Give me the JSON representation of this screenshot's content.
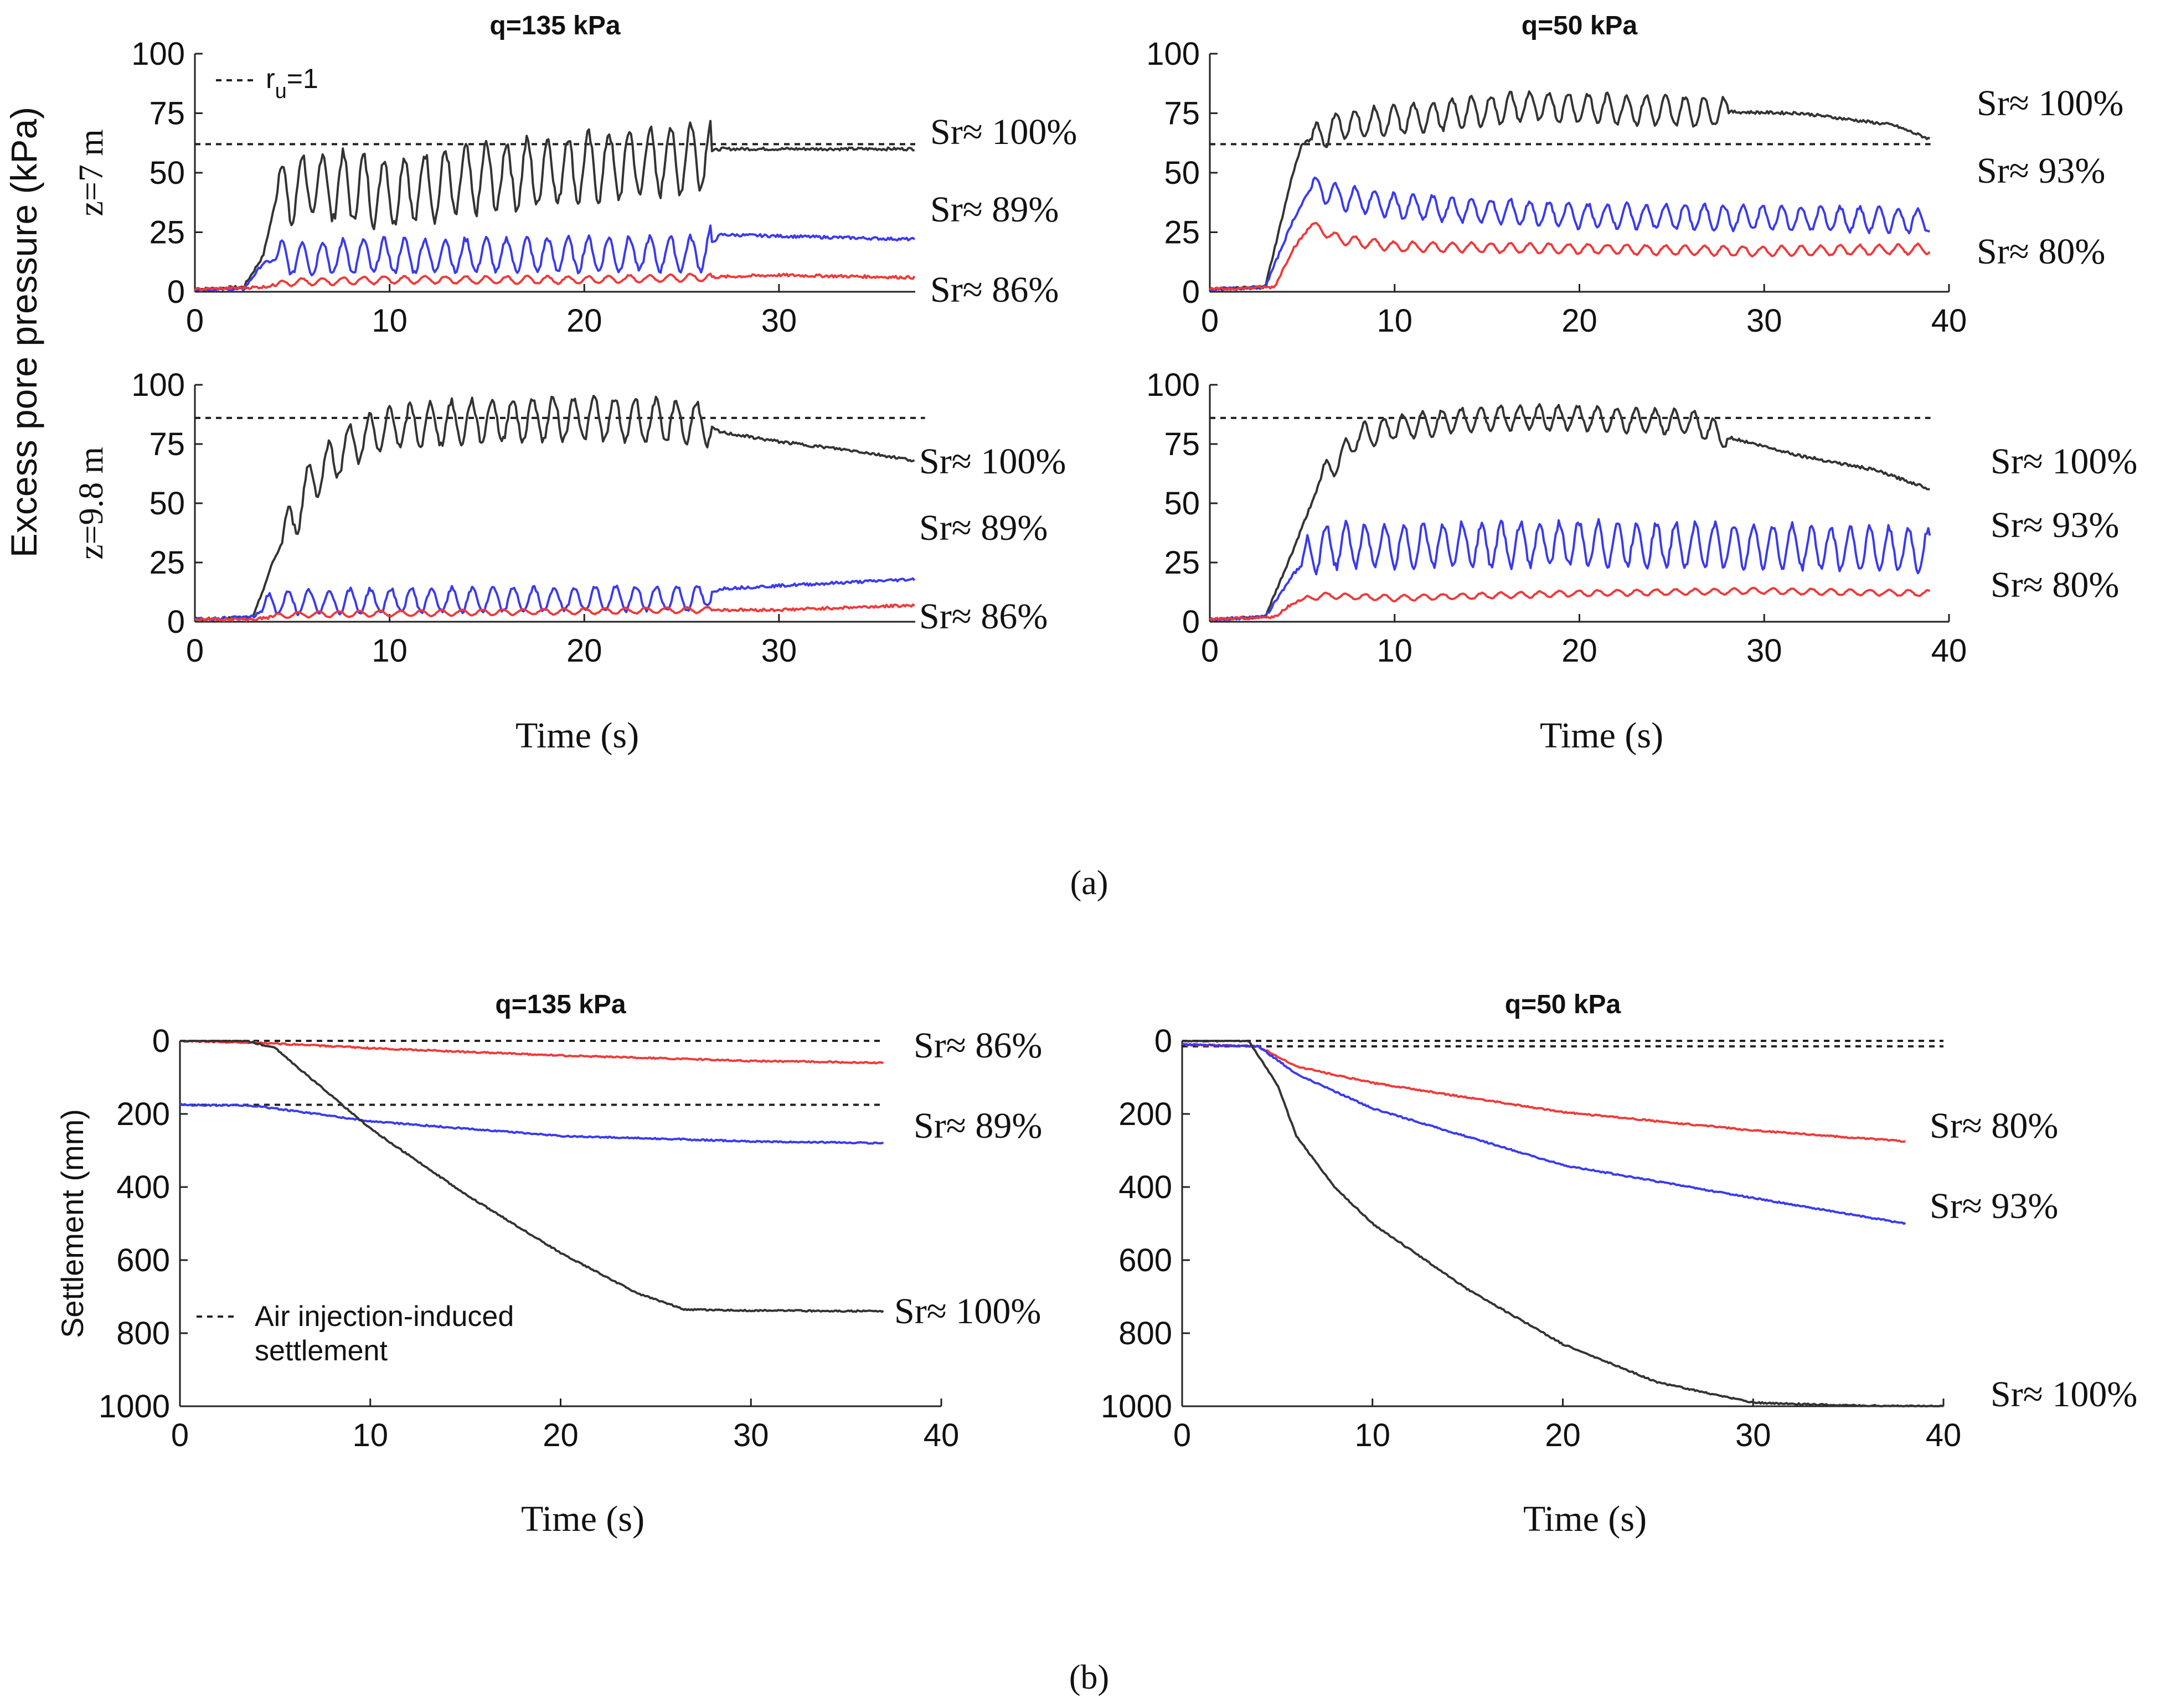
{
  "chart_data": [
    {
      "id": "a1",
      "type": "line",
      "title": "q=135 kPa",
      "ylabel": "z=7 m",
      "xlabel": "",
      "xlim": [
        0,
        37
      ],
      "ylim": [
        0,
        100
      ],
      "xticks": [
        0,
        10,
        20,
        30
      ],
      "yticks": [
        0,
        25,
        50,
        75,
        100
      ],
      "ref_line": 62,
      "ref_label": "r",
      "ref_label_sub": "u",
      "ref_label_tail": "=1",
      "series": [
        {
          "name": "Sr≈ 100%",
          "color": "#333333",
          "points": [
            [
              0,
              1
            ],
            [
              2.5,
              2
            ],
            [
              3.5,
              15
            ],
            [
              4.2,
              40
            ],
            [
              6,
              45
            ],
            [
              10,
              42
            ],
            [
              15,
              48
            ],
            [
              20,
              52
            ],
            [
              25,
              56
            ],
            [
              27,
              60
            ],
            [
              37,
              60
            ]
          ],
          "amp": 14,
          "amp_start": 4.2,
          "amp_end": 26.5,
          "period": 1.05,
          "label": "Sr≈ 100%"
        },
        {
          "name": "Sr≈ 89%",
          "color": "#3a3aee",
          "points": [
            [
              0,
              1
            ],
            [
              2.5,
              1
            ],
            [
              3.5,
              12
            ],
            [
              4.5,
              14
            ],
            [
              10,
              15
            ],
            [
              26,
              16
            ],
            [
              27,
              24
            ],
            [
              37,
              22
            ]
          ],
          "amp": 7,
          "amp_start": 4.2,
          "amp_end": 26.5,
          "period": 1.05,
          "label": "Sr≈ 89%"
        },
        {
          "name": "Sr≈ 86%",
          "color": "#ee3a3a",
          "points": [
            [
              0,
              1
            ],
            [
              3.5,
              2
            ],
            [
              5,
              4
            ],
            [
              10,
              5
            ],
            [
              20,
              5
            ],
            [
              26,
              6
            ],
            [
              30,
              7
            ],
            [
              37,
              6
            ]
          ],
          "amp": 1.5,
          "amp_start": 4.2,
          "amp_end": 26.5,
          "period": 1.05,
          "label": "Sr≈ 86%"
        }
      ]
    },
    {
      "id": "a2",
      "type": "line",
      "title": "q=50 kPa",
      "ylabel": "",
      "xlabel": "",
      "xlim": [
        0,
        39
      ],
      "ylim": [
        0,
        100
      ],
      "xticks": [
        0,
        10,
        20,
        30,
        40
      ],
      "yticks": [
        0,
        25,
        50,
        75,
        100
      ],
      "ref_line": 62,
      "series": [
        {
          "name": "Sr≈ 100%",
          "color": "#333333",
          "points": [
            [
              0,
              1
            ],
            [
              3,
              2
            ],
            [
              4.5,
              50
            ],
            [
              5,
              62
            ],
            [
              7,
              70
            ],
            [
              10,
              72
            ],
            [
              17,
              78
            ],
            [
              25,
              76
            ],
            [
              32,
              75
            ],
            [
              37,
              70
            ],
            [
              39,
              64
            ]
          ],
          "amp": 6,
          "amp_start": 5.5,
          "amp_end": 28,
          "period": 1.05,
          "label": "Sr≈ 100%"
        },
        {
          "name": "Sr≈ 93%",
          "color": "#3a3aee",
          "points": [
            [
              0,
              1
            ],
            [
              3,
              2
            ],
            [
              4.5,
              30
            ],
            [
              5.5,
              44
            ],
            [
              7,
              40
            ],
            [
              10,
              36
            ],
            [
              20,
              32
            ],
            [
              30,
              31
            ],
            [
              39,
              30
            ]
          ],
          "amp": 5,
          "amp_start": 5.5,
          "amp_end": 39,
          "period": 1.05,
          "label": "Sr≈ 93%"
        },
        {
          "name": "Sr≈ 80%",
          "color": "#ee3a3a",
          "points": [
            [
              0,
              1
            ],
            [
              3.5,
              2
            ],
            [
              4.5,
              18
            ],
            [
              5.5,
              28
            ],
            [
              7,
              22
            ],
            [
              10,
              19
            ],
            [
              20,
              18
            ],
            [
              30,
              17
            ],
            [
              39,
              18
            ]
          ],
          "amp": 2,
          "amp_start": 5.5,
          "amp_end": 39,
          "period": 1.05,
          "label": "Sr≈ 80%"
        }
      ]
    },
    {
      "id": "a3",
      "type": "line",
      "title": "",
      "ylabel": "z=9.8 m",
      "xlabel": "Time (s)",
      "xlim": [
        0,
        37
      ],
      "ylim": [
        0,
        100
      ],
      "xticks": [
        0,
        10,
        20,
        30
      ],
      "yticks": [
        0,
        25,
        50,
        75,
        100
      ],
      "ref_line": 86,
      "series": [
        {
          "name": "Sr≈ 100%",
          "color": "#333333",
          "points": [
            [
              0,
              1
            ],
            [
              3,
              2
            ],
            [
              4,
              25
            ],
            [
              6,
              60
            ],
            [
              8,
              75
            ],
            [
              10,
              82
            ],
            [
              15,
              85
            ],
            [
              20,
              86
            ],
            [
              26,
              84
            ],
            [
              27,
              80
            ],
            [
              30,
              76
            ],
            [
              34,
              72
            ],
            [
              37,
              68
            ]
          ],
          "amp": 9,
          "amp_start": 4.5,
          "amp_end": 26.5,
          "period": 1.05,
          "label": "Sr≈ 100%"
        },
        {
          "name": "Sr≈ 89%",
          "color": "#3a3aee",
          "points": [
            [
              0,
              1
            ],
            [
              3,
              2
            ],
            [
              4,
              8
            ],
            [
              10,
              9
            ],
            [
              26,
              10
            ],
            [
              27,
              14
            ],
            [
              37,
              18
            ]
          ],
          "amp": 5,
          "amp_start": 3.5,
          "amp_end": 26.5,
          "period": 1.05,
          "label": "Sr≈ 89%"
        },
        {
          "name": "Sr≈ 86%",
          "color": "#ee3a3a",
          "points": [
            [
              0,
              1
            ],
            [
              3,
              1
            ],
            [
              5,
              3
            ],
            [
              15,
              4
            ],
            [
              26,
              5
            ],
            [
              30,
              5
            ],
            [
              37,
              7
            ]
          ],
          "amp": 1.2,
          "amp_start": 4,
          "amp_end": 26.5,
          "period": 1.05,
          "label": "Sr≈ 86%"
        }
      ]
    },
    {
      "id": "a4",
      "type": "line",
      "title": "",
      "ylabel": "",
      "xlabel": "Time (s)",
      "xlim": [
        0,
        39
      ],
      "ylim": [
        0,
        100
      ],
      "xticks": [
        0,
        10,
        20,
        30,
        40
      ],
      "yticks": [
        0,
        25,
        50,
        75,
        100
      ],
      "ref_line": 86,
      "series": [
        {
          "name": "Sr≈ 100%",
          "color": "#333333",
          "points": [
            [
              0,
              1
            ],
            [
              3,
              2
            ],
            [
              4.5,
              30
            ],
            [
              6,
              60
            ],
            [
              8,
              78
            ],
            [
              10,
              82
            ],
            [
              15,
              86
            ],
            [
              20,
              86
            ],
            [
              26,
              84
            ],
            [
              28,
              78
            ],
            [
              32,
              70
            ],
            [
              36,
              64
            ],
            [
              39,
              56
            ]
          ],
          "amp": 5,
          "amp_start": 6,
          "amp_end": 28,
          "period": 1.05,
          "label": "Sr≈ 100%"
        },
        {
          "name": "Sr≈ 93%",
          "color": "#3a3aee",
          "points": [
            [
              0,
              1
            ],
            [
              3,
              2
            ],
            [
              4.5,
              20
            ],
            [
              6,
              32
            ],
            [
              10,
              32
            ],
            [
              20,
              33
            ],
            [
              30,
              32
            ],
            [
              39,
              30
            ]
          ],
          "amp": 9,
          "amp_start": 5,
          "amp_end": 39,
          "period": 1.05,
          "label": "Sr≈ 93%"
        },
        {
          "name": "Sr≈ 80%",
          "color": "#ee3a3a",
          "points": [
            [
              0,
              1
            ],
            [
              3.5,
              2
            ],
            [
              4.5,
              8
            ],
            [
              6,
              11
            ],
            [
              10,
              10
            ],
            [
              20,
              12
            ],
            [
              30,
              13
            ],
            [
              39,
              12
            ]
          ],
          "amp": 1.2,
          "amp_start": 5,
          "amp_end": 39,
          "period": 1.05,
          "label": "Sr≈ 80%"
        }
      ]
    },
    {
      "id": "b1",
      "type": "line",
      "title": "q=135 kPa",
      "ylabel": "Settlement (mm)",
      "xlabel": "Time (s)",
      "xlim": [
        0,
        40
      ],
      "ylim": [
        0,
        1000
      ],
      "y_inverted": true,
      "xticks": [
        0,
        10,
        20,
        30,
        40
      ],
      "yticks": [
        0,
        200,
        400,
        600,
        800,
        1000
      ],
      "ref_lines": [
        {
          "value": 0,
          "x_end": 37
        },
        {
          "value": 175,
          "x_end": 37
        }
      ],
      "legend": "Air injection-induced settlement",
      "series": [
        {
          "name": "Sr≈ 86%",
          "color": "#ee3a3a",
          "points": [
            [
              0,
              0
            ],
            [
              4,
              5
            ],
            [
              10,
              20
            ],
            [
              20,
              40
            ],
            [
              30,
              55
            ],
            [
              37,
              60
            ]
          ],
          "label": "Sr≈ 86%"
        },
        {
          "name": "Sr≈ 89%",
          "color": "#3a3aee",
          "points": [
            [
              0,
              175
            ],
            [
              4,
              178
            ],
            [
              10,
              220
            ],
            [
              20,
              260
            ],
            [
              30,
              275
            ],
            [
              37,
              280
            ]
          ],
          "label": "Sr≈ 89%"
        },
        {
          "name": "Sr≈ 100%",
          "color": "#333333",
          "points": [
            [
              0,
              0
            ],
            [
              3.5,
              0
            ],
            [
              5,
              20
            ],
            [
              10,
              240
            ],
            [
              15,
              420
            ],
            [
              20,
              580
            ],
            [
              24,
              690
            ],
            [
              26.5,
              735
            ],
            [
              30,
              738
            ],
            [
              37,
              740
            ]
          ],
          "label": "Sr≈ 100%"
        }
      ]
    },
    {
      "id": "b2",
      "type": "line",
      "title": "q=50 kPa",
      "ylabel": "",
      "xlabel": "Time (s)",
      "xlim": [
        0,
        40
      ],
      "ylim": [
        0,
        1000
      ],
      "y_inverted": true,
      "xticks": [
        0,
        10,
        20,
        30,
        40
      ],
      "yticks": [
        0,
        200,
        400,
        600,
        800,
        1000
      ],
      "ref_lines": [
        {
          "value": 0,
          "x_end": 40
        },
        {
          "value": 15,
          "x_end": 40
        }
      ],
      "series": [
        {
          "name": "Sr≈ 80%",
          "color": "#ee3a3a",
          "points": [
            [
              0,
              10
            ],
            [
              4,
              15
            ],
            [
              6,
              70
            ],
            [
              10,
              115
            ],
            [
              20,
              195
            ],
            [
              30,
              245
            ],
            [
              38,
              275
            ]
          ],
          "label": "Sr≈ 80%"
        },
        {
          "name": "Sr≈ 93%",
          "color": "#3a3aee",
          "points": [
            [
              0,
              10
            ],
            [
              4,
              15
            ],
            [
              6,
              90
            ],
            [
              10,
              185
            ],
            [
              20,
              340
            ],
            [
              30,
              430
            ],
            [
              38,
              500
            ]
          ],
          "label": "Sr≈ 93%"
        },
        {
          "name": "Sr≈ 100%",
          "color": "#333333",
          "points": [
            [
              0,
              0
            ],
            [
              3.5,
              0
            ],
            [
              5,
              120
            ],
            [
              6,
              260
            ],
            [
              8,
              400
            ],
            [
              10,
              500
            ],
            [
              15,
              680
            ],
            [
              20,
              830
            ],
            [
              25,
              935
            ],
            [
              30,
              990
            ],
            [
              35,
              998
            ],
            [
              40,
              1000
            ]
          ],
          "label": "Sr≈ 100%"
        }
      ]
    }
  ],
  "shared_ylabel": "Excess pore pressure (kPa)",
  "caption_a": "(a)",
  "caption_b": "(b)"
}
